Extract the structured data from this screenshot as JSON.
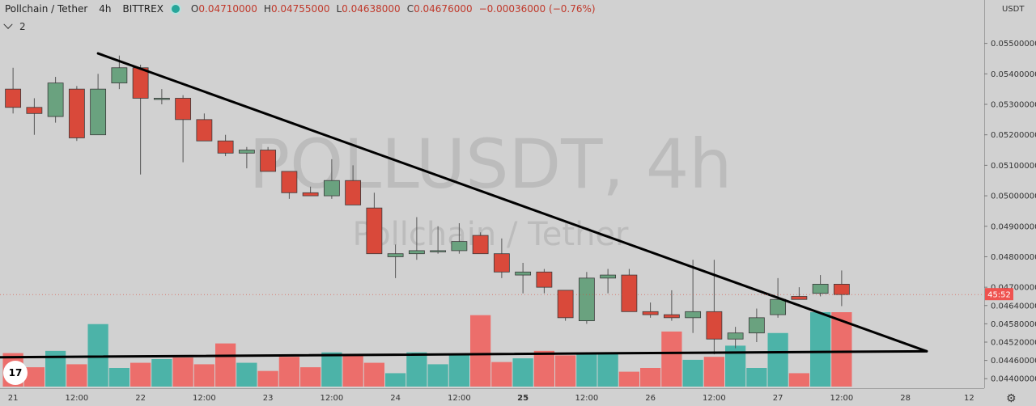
{
  "header": {
    "symbol": "Pollchain / Tether",
    "interval": "4h",
    "exchange": "BITTREX",
    "ohlc": [
      {
        "label": "O",
        "value": "0.04710000"
      },
      {
        "label": "H",
        "value": "0.04755000"
      },
      {
        "label": "L",
        "value": "0.04638000"
      },
      {
        "label": "C",
        "value": "0.04676000"
      }
    ],
    "change": "−0.00036000 (−0.76%)"
  },
  "indicator_count": "2",
  "currency": "USDT",
  "countdown": "45:52",
  "watermark": {
    "title": "POLLUSDT, 4h",
    "subtitle": "Pollchain / Tether"
  },
  "tv_logo": "17",
  "colors": {
    "up": "#6aa27f",
    "down": "#d9493a",
    "vol_up": "#4cb3a8",
    "vol_down": "#ec6e6b"
  },
  "chart_data": {
    "type": "candlestick",
    "y_range": [
      0.0439,
      0.0556
    ],
    "y_ticks": [
      "0.05500000",
      "0.05400000",
      "0.05300000",
      "0.05200000",
      "0.05100000",
      "0.05000000",
      "0.04900000",
      "0.04800000",
      "0.04700000",
      "0.04640000",
      "0.04580000",
      "0.04520000",
      "0.04460000",
      "0.04400000"
    ],
    "x_ticks": [
      {
        "label": "21",
        "bar": 0.5,
        "bold": false
      },
      {
        "label": "12:00",
        "bar": 3.5,
        "bold": false
      },
      {
        "label": "22",
        "bar": 6.5,
        "bold": false
      },
      {
        "label": "12:00",
        "bar": 9.5,
        "bold": false
      },
      {
        "label": "23",
        "bar": 12.5,
        "bold": false
      },
      {
        "label": "12:00",
        "bar": 15.5,
        "bold": false
      },
      {
        "label": "24",
        "bar": 18.5,
        "bold": false
      },
      {
        "label": "12:00",
        "bar": 21.5,
        "bold": false
      },
      {
        "label": "25",
        "bar": 24.5,
        "bold": true
      },
      {
        "label": "12:00",
        "bar": 27.5,
        "bold": false
      },
      {
        "label": "26",
        "bar": 30.5,
        "bold": false
      },
      {
        "label": "12:00",
        "bar": 33.5,
        "bold": false
      },
      {
        "label": "27",
        "bar": 36.5,
        "bold": false
      },
      {
        "label": "12:00",
        "bar": 39.5,
        "bold": false
      },
      {
        "label": "28",
        "bar": 42.5,
        "bold": false
      },
      {
        "label": "12",
        "bar": 45.5,
        "bold": false
      }
    ],
    "candles": [
      {
        "o": 0.0535,
        "h": 0.0542,
        "l": 0.0527,
        "c": 0.0529
      },
      {
        "o": 0.0529,
        "h": 0.0532,
        "l": 0.052,
        "c": 0.0527
      },
      {
        "o": 0.0526,
        "h": 0.0539,
        "l": 0.0524,
        "c": 0.0537
      },
      {
        "o": 0.0535,
        "h": 0.0536,
        "l": 0.0518,
        "c": 0.0519
      },
      {
        "o": 0.052,
        "h": 0.054,
        "l": 0.052,
        "c": 0.0535
      },
      {
        "o": 0.0537,
        "h": 0.0546,
        "l": 0.0535,
        "c": 0.0542
      },
      {
        "o": 0.0542,
        "h": 0.0543,
        "l": 0.0507,
        "c": 0.0532
      },
      {
        "o": 0.0532,
        "h": 0.0535,
        "l": 0.053,
        "c": 0.0532
      },
      {
        "o": 0.0532,
        "h": 0.0533,
        "l": 0.0511,
        "c": 0.0525
      },
      {
        "o": 0.0525,
        "h": 0.0527,
        "l": 0.0518,
        "c": 0.0518
      },
      {
        "o": 0.0518,
        "h": 0.052,
        "l": 0.0513,
        "c": 0.0514
      },
      {
        "o": 0.0514,
        "h": 0.0516,
        "l": 0.0509,
        "c": 0.0515
      },
      {
        "o": 0.0515,
        "h": 0.0516,
        "l": 0.0508,
        "c": 0.0508
      },
      {
        "o": 0.0508,
        "h": 0.0508,
        "l": 0.0499,
        "c": 0.0501
      },
      {
        "o": 0.0501,
        "h": 0.0503,
        "l": 0.05,
        "c": 0.05
      },
      {
        "o": 0.05,
        "h": 0.0512,
        "l": 0.0499,
        "c": 0.0505
      },
      {
        "o": 0.0505,
        "h": 0.051,
        "l": 0.0497,
        "c": 0.0497
      },
      {
        "o": 0.0496,
        "h": 0.0501,
        "l": 0.0481,
        "c": 0.0481
      },
      {
        "o": 0.048,
        "h": 0.0484,
        "l": 0.0473,
        "c": 0.0481
      },
      {
        "o": 0.0481,
        "h": 0.0493,
        "l": 0.0479,
        "c": 0.0482
      },
      {
        "o": 0.0482,
        "h": 0.049,
        "l": 0.0481,
        "c": 0.0482
      },
      {
        "o": 0.0482,
        "h": 0.0491,
        "l": 0.0481,
        "c": 0.0485
      },
      {
        "o": 0.0487,
        "h": 0.0488,
        "l": 0.0481,
        "c": 0.0481
      },
      {
        "o": 0.0481,
        "h": 0.0486,
        "l": 0.0473,
        "c": 0.0475
      },
      {
        "o": 0.0474,
        "h": 0.0478,
        "l": 0.0468,
        "c": 0.0475
      },
      {
        "o": 0.0475,
        "h": 0.0476,
        "l": 0.0468,
        "c": 0.047
      },
      {
        "o": 0.0469,
        "h": 0.0469,
        "l": 0.0459,
        "c": 0.046
      },
      {
        "o": 0.0459,
        "h": 0.0475,
        "l": 0.0458,
        "c": 0.0473
      },
      {
        "o": 0.0473,
        "h": 0.0476,
        "l": 0.0468,
        "c": 0.0474
      },
      {
        "o": 0.0474,
        "h": 0.0476,
        "l": 0.0462,
        "c": 0.0462
      },
      {
        "o": 0.0462,
        "h": 0.0465,
        "l": 0.046,
        "c": 0.0461
      },
      {
        "o": 0.0461,
        "h": 0.0469,
        "l": 0.0459,
        "c": 0.046
      },
      {
        "o": 0.046,
        "h": 0.0479,
        "l": 0.0455,
        "c": 0.0462
      },
      {
        "o": 0.0462,
        "h": 0.0479,
        "l": 0.0448,
        "c": 0.0453
      },
      {
        "o": 0.0453,
        "h": 0.0457,
        "l": 0.045,
        "c": 0.0455
      },
      {
        "o": 0.0455,
        "h": 0.0463,
        "l": 0.0452,
        "c": 0.046
      },
      {
        "o": 0.0461,
        "h": 0.0473,
        "l": 0.046,
        "c": 0.0466
      },
      {
        "o": 0.0467,
        "h": 0.047,
        "l": 0.0466,
        "c": 0.0466
      },
      {
        "o": 0.0468,
        "h": 0.0474,
        "l": 0.0467,
        "c": 0.0471
      },
      {
        "o": 0.0471,
        "h": 0.04755,
        "l": 0.04638,
        "c": 0.04676
      }
    ],
    "volume_levels": [
      0.45,
      0.26,
      0.48,
      0.3,
      0.84,
      0.25,
      0.32,
      0.37,
      0.39,
      0.3,
      0.58,
      0.32,
      0.21,
      0.4,
      0.26,
      0.46,
      0.42,
      0.32,
      0.18,
      0.46,
      0.3,
      0.43,
      0.96,
      0.33,
      0.38,
      0.48,
      0.42,
      0.45,
      0.45,
      0.2,
      0.25,
      0.74,
      0.36,
      0.4,
      0.55,
      0.25,
      0.72,
      0.18,
      1.0,
      1.0
    ],
    "trendlines": [
      {
        "from": {
          "bar": 4.5,
          "price": 0.05467
        },
        "to": {
          "bar": 43.5,
          "price": 0.0449
        }
      },
      {
        "from": {
          "bar": -0.6,
          "price": 0.0447
        },
        "to": {
          "bar": 43.5,
          "price": 0.0449
        }
      }
    ],
    "last_price": 0.04676
  }
}
